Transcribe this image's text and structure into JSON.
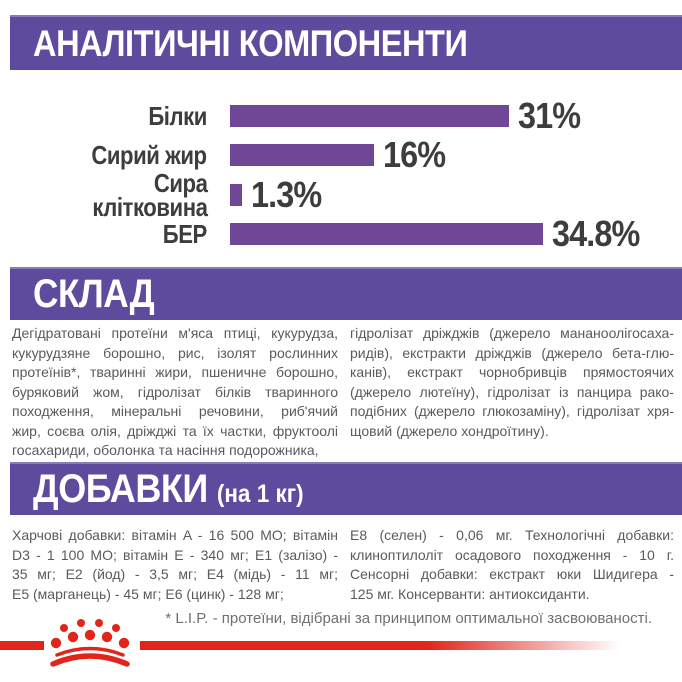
{
  "colors": {
    "header_purple": "#5e4b9e",
    "chart_bar_purple": "#6f4796",
    "chart_text": "#3d3c3e",
    "body_text": "#595a5c",
    "brand_red": "#e1251b"
  },
  "sections": {
    "analytical": {
      "title": "АНАЛІТИЧНІ КОМПОНЕНТИ"
    },
    "composition": {
      "title": "СКЛАД",
      "col_left_lines": [
        "Дегідратовані протеїни м'яса птиці, кукурудза,",
        "кукурудзяне борошно, рис, ізолят рослинних",
        "протеїнів*, тваринні жири, пшеничне борошно,",
        "буряковий жом, гідролізат білків тваринного",
        "походження, мінеральні речовини, риб'ячий",
        "жир, соєва олія, дріжджі та їх частки, фруктоолі",
        "госахариди, оболонка та насіння подорожника,"
      ],
      "col_right_lines": [
        "гідролізат дріжджів (джерело мананоолігосаха-",
        "ридів), екстракти дріжджів (джерело бета-глю-",
        "канів), екстракт чорнобривців прямостоячих",
        "(джерело лютеїну), гідролізат із панцира рако-",
        "подібних (джерело глюкозаміну), гідролізат хря-",
        "щовий (джерело хондроїтину)."
      ]
    },
    "additives": {
      "title": "ДОБАВКИ",
      "title_suffix": "(на 1 кг)",
      "col_left_lines": [
        "Харчові добавки: вітамін A - 16 500 МО; вітамін",
        "D3 - 1 100 МО; вітамін E - 340 мг; E1 (залізо) -",
        "35 мг; E2 (йод) - 3,5 мг; E4 (мідь) - 11 мг;",
        "E5 (марганець) - 45 мг; E6 (цинк) - 128 мг;"
      ],
      "col_right_lines": [
        "E8 (селен) - 0,06 мг. Технологічні добавки:",
        "клиноптилоліт осадового походження - 10 г.",
        "Сенсорні добавки: екстракт юки Шидигера -",
        "125 мг. Консерванти: антиоксиданти."
      ]
    },
    "footnote": "* L.I.P. - протеїни, відібрані за принципом оптимальної засвоюваності."
  },
  "chart_data": {
    "type": "bar",
    "orientation": "horizontal",
    "title": "АНАЛІТИЧНІ КОМПОНЕНТИ",
    "categories": [
      "Білки",
      "Сирий жир",
      "Сира клітковина",
      "БЕР"
    ],
    "values": [
      31,
      16,
      1.3,
      34.8
    ],
    "value_labels": [
      "31%",
      "16%",
      "1.3%",
      "34.8%"
    ],
    "label_display": [
      "Білки",
      "Сирий жир",
      "Сира\nклітковина",
      "БЕР"
    ],
    "xlim": [
      0,
      36
    ],
    "grid": false,
    "legend": false,
    "bar_color": "#6f4796"
  },
  "logo": {
    "name": "royal-canin-crown",
    "color": "#e1251b"
  }
}
